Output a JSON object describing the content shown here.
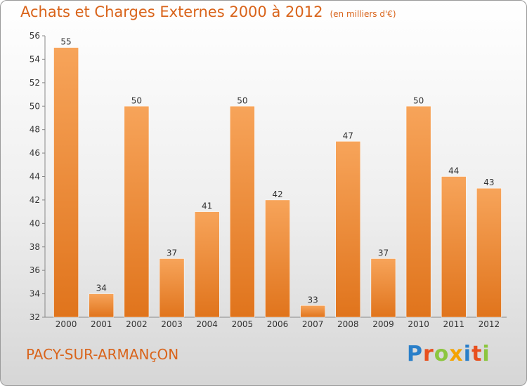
{
  "header": {
    "title": "Achats et Charges Externes 2000 à 2012",
    "unit": "(en milliers d'€)"
  },
  "footer": {
    "commune": "PACY-SUR-ARMANçON",
    "brand_letters": [
      {
        "char": "P",
        "color": "#2a7fc9"
      },
      {
        "char": "r",
        "color": "#e8501e"
      },
      {
        "char": "o",
        "color": "#8cc63e"
      },
      {
        "char": "x",
        "color": "#f4a300"
      },
      {
        "char": "i",
        "color": "#2a7fc9"
      },
      {
        "char": "t",
        "color": "#e8501e"
      },
      {
        "char": "i",
        "color": "#8cc63e"
      }
    ]
  },
  "chart_data": {
    "type": "bar",
    "title": "Achats et Charges Externes 2000 à 2012",
    "categories": [
      "2000",
      "2001",
      "2002",
      "2003",
      "2004",
      "2005",
      "2006",
      "2007",
      "2008",
      "2009",
      "2010",
      "2011",
      "2012"
    ],
    "values": [
      55,
      34,
      50,
      37,
      41,
      50,
      42,
      33,
      47,
      37,
      50,
      44,
      43
    ],
    "ylim": [
      32,
      56
    ],
    "yticks": [
      32,
      34,
      36,
      38,
      40,
      42,
      44,
      46,
      48,
      50,
      52,
      54,
      56
    ],
    "grid": false,
    "legend": "none",
    "bar_color_light": "#f7a45a",
    "bar_color_dark": "#e0741c",
    "text_color": "#d9641b"
  }
}
